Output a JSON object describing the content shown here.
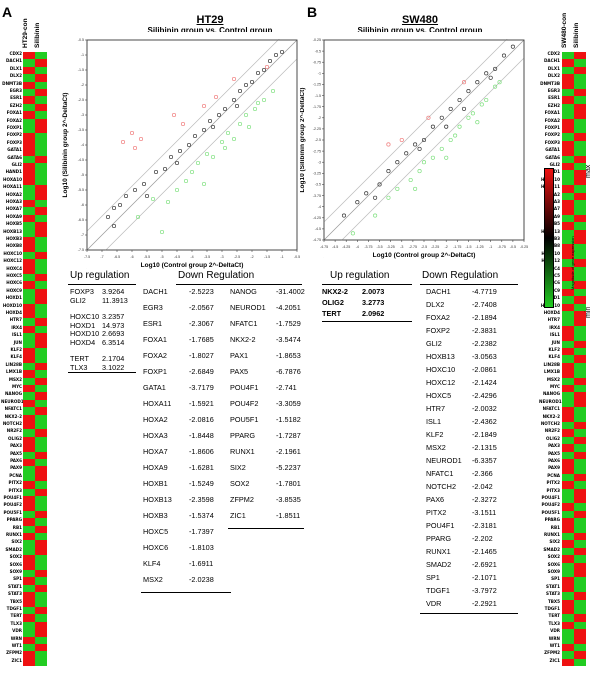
{
  "panels": {
    "a_letter": "A",
    "b_letter": "B"
  },
  "heatmap_left": {
    "col_headers": [
      "HT29-con",
      "Silibinin"
    ],
    "genes": [
      "CDX2",
      "DACH1",
      "DLX1",
      "DLX2",
      "DNMT3B",
      "EGR3",
      "ESR1",
      "EZH2",
      "FOXA1",
      "FOXA2",
      "FOXP1",
      "FOXP2",
      "FOXP3",
      "GATA1",
      "GATA6",
      "GLI2",
      "HAND1",
      "HOXA10",
      "HOXA11",
      "HOXA2",
      "HOXA3",
      "HOXA7",
      "HOXA9",
      "HOXB5",
      "HOXB13",
      "HOXB3",
      "HOXB8",
      "HOXC10",
      "HOXC12",
      "HOXC4",
      "HOXC5",
      "HOXC6",
      "HOXC9",
      "HOXD1",
      "HOXD10",
      "HOXD4",
      "HTR7",
      "IRX4",
      "ISL1",
      "JUN",
      "KLF2",
      "KLF4",
      "LIN28B",
      "LMX1B",
      "MSX2",
      "MYC",
      "NANOG",
      "NEUROD1",
      "NFATC1",
      "NKX2-2",
      "NOTCH2",
      "NR2F2",
      "OLIG2",
      "PAX3",
      "PAX5",
      "PAX6",
      "PAX9",
      "PCNA",
      "PITX2",
      "PITX3",
      "POU4F1",
      "POU4F2",
      "POU5F1",
      "PPARG",
      "RB1",
      "RUNX1",
      "SIX2",
      "SMAD2",
      "SOX2",
      "SOX6",
      "SOX9",
      "SP1",
      "STAT1",
      "STAT3",
      "TBX5",
      "TDGF1",
      "TERT",
      "TLX3",
      "VDR",
      "WRN",
      "WT1",
      "ZFPM2",
      "ZIC1"
    ],
    "pattern": [
      1,
      0,
      1,
      0,
      1,
      0,
      1,
      0,
      1,
      0,
      0,
      1,
      1,
      1,
      0,
      1,
      1,
      1,
      0,
      0,
      1,
      0,
      1,
      0,
      0,
      1,
      1,
      0,
      1,
      1,
      0,
      1,
      0,
      0,
      1,
      1,
      0,
      1,
      0,
      0,
      1,
      1,
      0,
      1,
      0,
      1,
      0,
      1,
      0,
      1,
      1,
      0,
      1,
      1,
      0,
      1,
      0,
      0,
      1,
      0,
      1,
      1,
      0,
      1,
      0,
      1,
      0,
      0,
      1,
      1,
      0,
      1,
      0,
      1,
      1,
      0,
      1,
      0,
      0,
      1,
      0,
      1,
      1
    ]
  },
  "heatmap_right": {
    "col_headers": [
      "SW480-con",
      "Silibinin"
    ],
    "genes": [
      "CDX2",
      "DACH1",
      "DLX1",
      "DLX2",
      "DNMT3B",
      "EGR3",
      "ESR1",
      "EZH2",
      "FOXA1",
      "FOXA2",
      "FOXP1",
      "FOXP2",
      "FOXP3",
      "GATA1",
      "GATA6",
      "GLI2",
      "HAND1",
      "HOXA10",
      "HOXA11",
      "HOXA2",
      "HOXA3",
      "HOXA7",
      "HOXA9",
      "HOXB5",
      "HOXB13",
      "HOXB3",
      "HOXB8",
      "HOXC10",
      "HOXC12",
      "HOXC4",
      "HOXC5",
      "HOXC6",
      "HOXC9",
      "HOXD1",
      "HOXD10",
      "HOXD4",
      "HTR7",
      "IRX4",
      "ISL1",
      "JUN",
      "KLF2",
      "KLF4",
      "LIN28B",
      "LMX1B",
      "MSX2",
      "MYC",
      "NANOG",
      "NEUROD1",
      "NFATC1",
      "NKX2-2",
      "NOTCH2",
      "NR2F2",
      "OLIG2",
      "PAX3",
      "PAX5",
      "PAX6",
      "PAX9",
      "PCNA",
      "PITX2",
      "PITX3",
      "POU4F1",
      "POU4F2",
      "POU5F1",
      "PPARG",
      "RB1",
      "RUNX1",
      "SIX2",
      "SMAD2",
      "SOX2",
      "SOX6",
      "SOX9",
      "SP1",
      "STAT1",
      "STAT3",
      "TBX5",
      "TDGF1",
      "TERT",
      "TLX3",
      "VDR",
      "WRN",
      "WT1",
      "ZFPM2",
      "ZIC1"
    ],
    "pattern": [
      0,
      1,
      0,
      1,
      1,
      0,
      1,
      0,
      0,
      1,
      1,
      0,
      1,
      1,
      0,
      1,
      0,
      0,
      1,
      0,
      1,
      1,
      0,
      1,
      0,
      0,
      1,
      1,
      0,
      1,
      1,
      0,
      1,
      0,
      1,
      0,
      0,
      1,
      1,
      0,
      1,
      0,
      1,
      1,
      0,
      1,
      0,
      0,
      1,
      1,
      0,
      1,
      0,
      1,
      0,
      1,
      1,
      0,
      1,
      0,
      0,
      1,
      0,
      1,
      1,
      0,
      1,
      0,
      1,
      0,
      0,
      1,
      1,
      0,
      1,
      1,
      0,
      1,
      0,
      0,
      1,
      0,
      1
    ]
  },
  "legend": {
    "max_label": "max",
    "min_label": "min",
    "caption": "Magnitude of gene expression"
  },
  "chart_data": [
    {
      "type": "scatter",
      "title": "HT29",
      "subtitle": "Silibinin group vs. Control group",
      "xlabel": "Log10 (Control group 2^-DeltaCt)",
      "ylabel": "Log10 (Silibinin group 2^-DeltaCt)",
      "xlim": [
        -7.5,
        -0.5
      ],
      "ylim": [
        -7.5,
        -0.5
      ],
      "xticks": [
        "-7.5",
        "-7",
        "-6.5",
        "-6",
        "-5.5",
        "-5",
        "-4.5",
        "-4",
        "-3.5",
        "-3",
        "-2.5",
        "-2",
        "-1.5",
        "-1",
        "-0.5"
      ],
      "yticks": [
        "-7.5",
        "-7",
        "-6.5",
        "-6",
        "-5.5",
        "-5",
        "-4.5",
        "-4",
        "-3.5",
        "-3",
        "-2.5",
        "-2",
        "-1.5",
        "-1",
        "-0.5"
      ],
      "points_up": [
        [
          -6.3,
          -3.9
        ],
        [
          -6.0,
          -3.6
        ],
        [
          -5.9,
          -4.1
        ],
        [
          -4.6,
          -3.0
        ],
        [
          -4.3,
          -3.3
        ],
        [
          -3.6,
          -2.7
        ],
        [
          -3.2,
          -2.4
        ],
        [
          -2.6,
          -1.8
        ],
        [
          -1.5,
          -1.4
        ],
        [
          -5.7,
          -3.8
        ]
      ],
      "points_down": [
        [
          -5.8,
          -6.4
        ],
        [
          -5.3,
          -5.8
        ],
        [
          -5.0,
          -6.9
        ],
        [
          -4.8,
          -5.9
        ],
        [
          -4.5,
          -5.5
        ],
        [
          -4.2,
          -5.2
        ],
        [
          -3.8,
          -4.6
        ],
        [
          -3.5,
          -4.3
        ],
        [
          -3.3,
          -4.4
        ],
        [
          -3.0,
          -3.9
        ],
        [
          -2.9,
          -4.1
        ],
        [
          -2.8,
          -3.6
        ],
        [
          -2.6,
          -3.8
        ],
        [
          -2.4,
          -3.3
        ],
        [
          -2.2,
          -3.0
        ],
        [
          -2.1,
          -3.4
        ],
        [
          -1.9,
          -2.8
        ],
        [
          -1.8,
          -2.6
        ],
        [
          -1.6,
          -2.5
        ],
        [
          -1.3,
          -2.2
        ],
        [
          -3.6,
          -5.3
        ],
        [
          -4.0,
          -4.9
        ]
      ],
      "points_nc": [
        [
          -6.8,
          -6.4
        ],
        [
          -6.6,
          -6.1
        ],
        [
          -6.4,
          -6.0
        ],
        [
          -6.2,
          -5.7
        ],
        [
          -5.9,
          -5.5
        ],
        [
          -5.6,
          -5.3
        ],
        [
          -5.2,
          -4.9
        ],
        [
          -4.9,
          -4.8
        ],
        [
          -4.7,
          -4.4
        ],
        [
          -4.4,
          -4.2
        ],
        [
          -4.1,
          -4.0
        ],
        [
          -3.9,
          -3.7
        ],
        [
          -3.6,
          -3.5
        ],
        [
          -3.4,
          -3.2
        ],
        [
          -3.1,
          -3.0
        ],
        [
          -2.9,
          -2.8
        ],
        [
          -2.6,
          -2.5
        ],
        [
          -2.4,
          -2.2
        ],
        [
          -2.2,
          -2.0
        ],
        [
          -2.0,
          -1.9
        ],
        [
          -1.8,
          -1.6
        ],
        [
          -1.6,
          -1.5
        ],
        [
          -1.4,
          -1.2
        ],
        [
          -1.2,
          -1.0
        ],
        [
          -1.0,
          -0.9
        ],
        [
          -2.5,
          -2.7
        ],
        [
          -3.3,
          -3.4
        ],
        [
          -4.5,
          -4.6
        ],
        [
          -5.5,
          -5.7
        ],
        [
          -6.6,
          -6.7
        ]
      ]
    },
    {
      "type": "scatter",
      "title": "SW480",
      "subtitle": "Silibinin group vs. Control group",
      "xlabel": "Log10 (Control group 2^-DeltaCt)",
      "ylabel": "Log10 (Silibinin group 2^-DeltaCt)",
      "xlim": [
        -4.75,
        -0.25
      ],
      "ylim": [
        -4.75,
        -0.25
      ],
      "xticks": [
        "-4.75",
        "-4.5",
        "-4.25",
        "-4",
        "-3.75",
        "-3.5",
        "-3.25",
        "-3",
        "-2.75",
        "-2.5",
        "-2.25",
        "-2",
        "-1.75",
        "-1.5",
        "-1.25",
        "-1",
        "-0.75",
        "-0.5",
        "-0.25"
      ],
      "yticks": [
        "-4.75",
        "-4.5",
        "-4.25",
        "-4",
        "-3.75",
        "-3.5",
        "-3.25",
        "-3",
        "-2.75",
        "-2.5",
        "-2.25",
        "-2",
        "-1.75",
        "-1.5",
        "-1.25",
        "-1",
        "-0.75",
        "-0.5",
        "-0.25"
      ],
      "points_up": [
        [
          -3.3,
          -2.6
        ],
        [
          -2.4,
          -2.0
        ],
        [
          -1.6,
          -1.2
        ],
        [
          -3.0,
          -2.5
        ]
      ],
      "points_down": [
        [
          -4.1,
          -4.6
        ],
        [
          -3.6,
          -4.2
        ],
        [
          -3.3,
          -3.8
        ],
        [
          -3.1,
          -3.6
        ],
        [
          -2.8,
          -3.4
        ],
        [
          -2.6,
          -3.2
        ],
        [
          -2.5,
          -3.0
        ],
        [
          -2.3,
          -2.9
        ],
        [
          -2.1,
          -2.7
        ],
        [
          -1.9,
          -2.5
        ],
        [
          -1.8,
          -2.4
        ],
        [
          -1.7,
          -2.2
        ],
        [
          -1.5,
          -2.0
        ],
        [
          -1.4,
          -1.9
        ],
        [
          -1.2,
          -1.7
        ],
        [
          -1.1,
          -1.6
        ],
        [
          -0.9,
          -1.3
        ],
        [
          -0.8,
          -1.2
        ],
        [
          -2.0,
          -2.9
        ],
        [
          -2.7,
          -3.6
        ],
        [
          -1.3,
          -2.1
        ]
      ],
      "points_nc": [
        [
          -4.3,
          -4.2
        ],
        [
          -4.0,
          -3.9
        ],
        [
          -3.8,
          -3.7
        ],
        [
          -3.5,
          -3.5
        ],
        [
          -3.3,
          -3.2
        ],
        [
          -3.1,
          -3.0
        ],
        [
          -2.9,
          -2.8
        ],
        [
          -2.7,
          -2.6
        ],
        [
          -2.5,
          -2.5
        ],
        [
          -2.3,
          -2.2
        ],
        [
          -2.1,
          -2.0
        ],
        [
          -1.9,
          -1.8
        ],
        [
          -1.7,
          -1.6
        ],
        [
          -1.5,
          -1.4
        ],
        [
          -1.3,
          -1.2
        ],
        [
          -1.1,
          -1.0
        ],
        [
          -0.9,
          -0.9
        ],
        [
          -0.7,
          -0.6
        ],
        [
          -0.5,
          -0.4
        ],
        [
          -2.0,
          -2.2
        ],
        [
          -2.6,
          -2.7
        ],
        [
          -3.6,
          -3.8
        ],
        [
          -1.6,
          -1.8
        ],
        [
          -1.0,
          -1.1
        ]
      ]
    }
  ],
  "tables": {
    "ht29_up_title": "Up regulation",
    "ht29_up": [
      {
        "gene": "FOXP3",
        "value": "3.9264"
      },
      {
        "gene": "GLI2",
        "value": "11.3913"
      },
      {
        "gene": "HOXC10",
        "value": "3.2357"
      },
      {
        "gene": "HOXD1",
        "value": "14.973"
      },
      {
        "gene": "HOXD10",
        "value": "2.6693"
      },
      {
        "gene": "HOXD4",
        "value": "6.3514"
      },
      {
        "gene": "TERT",
        "value": "2.1704"
      },
      {
        "gene": "TLX3",
        "value": "3.1022"
      }
    ],
    "ht29_down_title": "Down Regulation",
    "ht29_down_col1": [
      {
        "gene": "DACH1",
        "value": "-2.5223"
      },
      {
        "gene": "EGR3",
        "value": "-2.0567"
      },
      {
        "gene": "ESR1",
        "value": "-2.3067"
      },
      {
        "gene": "FOXA1",
        "value": "-1.7685"
      },
      {
        "gene": "FOXA2",
        "value": "-1.8027"
      },
      {
        "gene": "FOXP1",
        "value": "-2.6849"
      },
      {
        "gene": "GATA1",
        "value": "-3.7179"
      },
      {
        "gene": "HOXA11",
        "value": "-1.5921"
      },
      {
        "gene": "HOXA2",
        "value": "-2.0816"
      },
      {
        "gene": "HOXA3",
        "value": "-1.8448"
      },
      {
        "gene": "HOXA7",
        "value": "-1.8606"
      },
      {
        "gene": "HOXA9",
        "value": "-1.6281"
      },
      {
        "gene": "HOXB1",
        "value": "-1.5249"
      },
      {
        "gene": "HOXB13",
        "value": "-2.3598"
      },
      {
        "gene": "HOXB3",
        "value": "-1.5374"
      },
      {
        "gene": "HOXC5",
        "value": "-1.7397"
      },
      {
        "gene": "HOXC6",
        "value": "-1.8103"
      },
      {
        "gene": "KLF4",
        "value": "-1.6911"
      },
      {
        "gene": "MSX2",
        "value": "-2.0238"
      }
    ],
    "ht29_down_col2": [
      {
        "gene": "NANOG",
        "value": "-31.4002"
      },
      {
        "gene": "NEUROD1",
        "value": "-4.2051"
      },
      {
        "gene": "NFATC1",
        "value": "-1.7529"
      },
      {
        "gene": "NKX2-2",
        "value": "-3.5474"
      },
      {
        "gene": "PAX1",
        "value": "-1.8653"
      },
      {
        "gene": "PAX5",
        "value": "-6.7876"
      },
      {
        "gene": "POU4F1",
        "value": "-2.741"
      },
      {
        "gene": "POU4F2",
        "value": "-3.3059"
      },
      {
        "gene": "POU5F1",
        "value": "-1.5182"
      },
      {
        "gene": "PPARG",
        "value": "-1.7287"
      },
      {
        "gene": "RUNX1",
        "value": "-2.1961"
      },
      {
        "gene": "SIX2",
        "value": "-5.2237"
      },
      {
        "gene": "SOX2",
        "value": "-1.7801"
      },
      {
        "gene": "ZFPM2",
        "value": "-3.8535"
      },
      {
        "gene": "ZIC1",
        "value": "-1.8511"
      }
    ],
    "sw480_up_title": "Up regulation",
    "sw480_up": [
      {
        "gene": "NKX2-2",
        "value": "2.0073"
      },
      {
        "gene": "OLIG2",
        "value": "3.2773"
      },
      {
        "gene": "TERT",
        "value": "2.0962"
      }
    ],
    "sw480_down_title": "Down Regulation",
    "sw480_down": [
      {
        "gene": "DACH1",
        "value": "-4.7719"
      },
      {
        "gene": "DLX2",
        "value": "-2.7408"
      },
      {
        "gene": "FOXA2",
        "value": "-2.1894"
      },
      {
        "gene": "FOXP2",
        "value": "-2.3831"
      },
      {
        "gene": "GLI2",
        "value": "-2.2382"
      },
      {
        "gene": "HOXB13",
        "value": "-3.0563"
      },
      {
        "gene": "HOXC10",
        "value": "-2.0861"
      },
      {
        "gene": "HOXC12",
        "value": "-2.1424"
      },
      {
        "gene": "HOXC5",
        "value": "-2.4296"
      },
      {
        "gene": "HTR7",
        "value": "-2.0032"
      },
      {
        "gene": "ISL1",
        "value": "-2.4362"
      },
      {
        "gene": "KLF2",
        "value": "-2.1849"
      },
      {
        "gene": "MSX2",
        "value": "-2.1315"
      },
      {
        "gene": "NEUROD1",
        "value": "-6.3357"
      },
      {
        "gene": "NFATC1",
        "value": "-2.366"
      },
      {
        "gene": "NOTCH2",
        "value": "-2.042"
      },
      {
        "gene": "PAX6",
        "value": "-2.3272"
      },
      {
        "gene": "PITX2",
        "value": "-3.1511"
      },
      {
        "gene": "POU4F1",
        "value": "-2.3181"
      },
      {
        "gene": "PPARG",
        "value": "-2.202"
      },
      {
        "gene": "RUNX1",
        "value": "-2.1465"
      },
      {
        "gene": "SMAD2",
        "value": "-2.6921"
      },
      {
        "gene": "SP1",
        "value": "-2.1071"
      },
      {
        "gene": "TDGF1",
        "value": "-3.7972"
      },
      {
        "gene": "VDR",
        "value": "-2.2921"
      }
    ]
  },
  "colors": {
    "heat_green": "#22cc22",
    "heat_red": "#ee1111",
    "point_up": "#f07a7a",
    "point_down": "#7ee07e",
    "point_nc": "#333333"
  }
}
